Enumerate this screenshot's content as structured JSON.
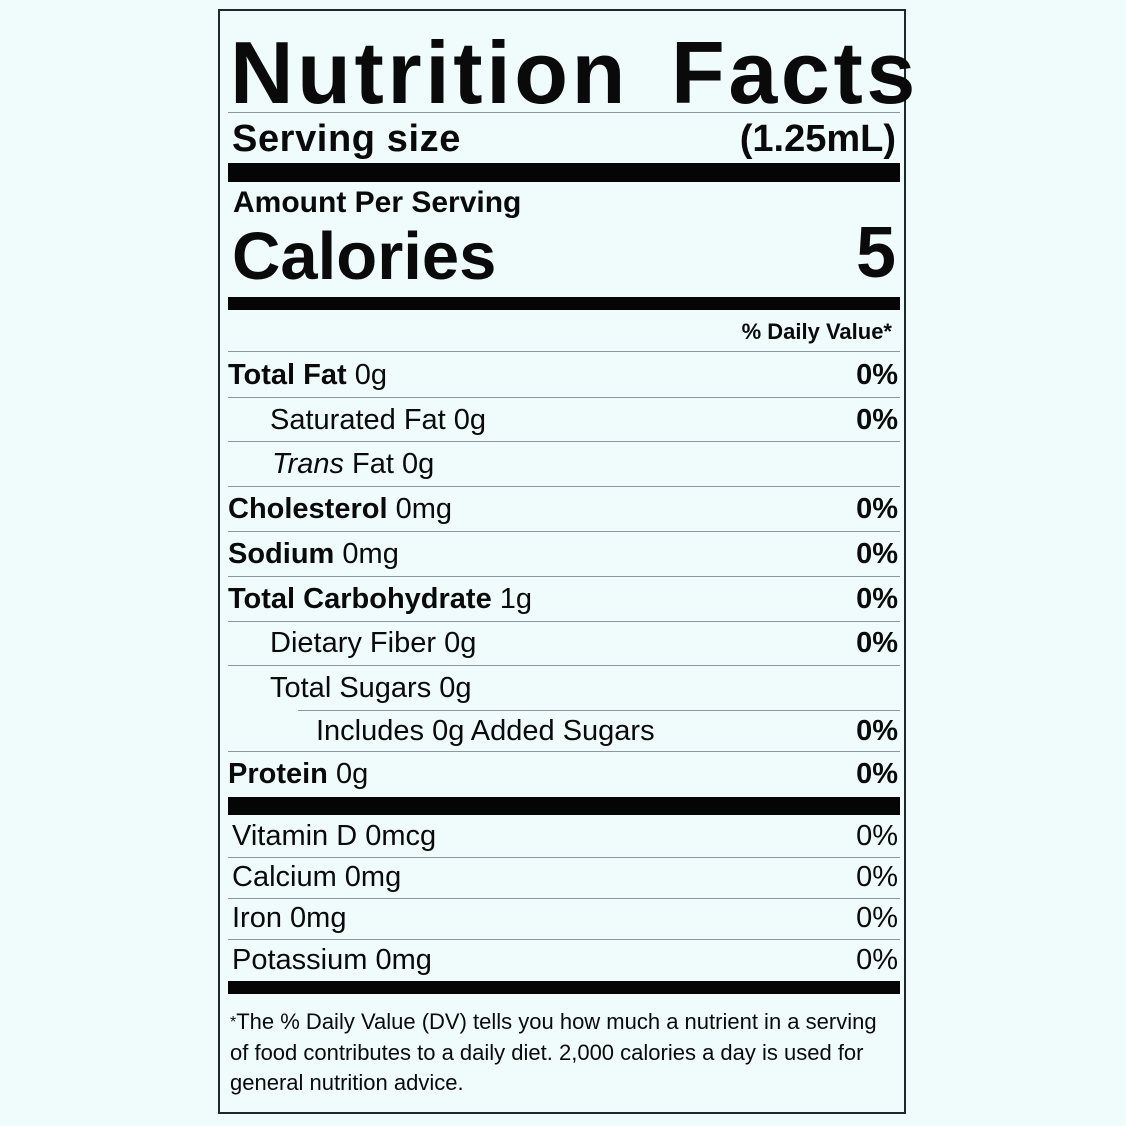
{
  "title": "Nutrition Facts",
  "serving": {
    "label": "Serving size",
    "value": "(1.25mL)"
  },
  "amount_per_serving": "Amount Per Serving",
  "calories": {
    "label": "Calories",
    "value": "5"
  },
  "daily_value_header": "% Daily Value*",
  "nutrients": [
    {
      "name": "Total Fat",
      "amount": "0g",
      "dv": "0%"
    },
    {
      "name": "Saturated Fat",
      "amount": "0g",
      "dv": "0%"
    },
    {
      "name_italic": "Trans",
      "name": "Fat",
      "amount": "0g"
    },
    {
      "name": "Cholesterol",
      "amount": "0mg",
      "dv": "0%"
    },
    {
      "name": "Sodium",
      "amount": "0mg",
      "dv": "0%"
    },
    {
      "name": "Total Carbohydrate",
      "amount": "1g",
      "dv": "0%"
    },
    {
      "name": "Dietary Fiber",
      "amount": "0g",
      "dv": "0%"
    },
    {
      "name": "Total Sugars",
      "amount": "0g"
    },
    {
      "name": "Includes 0g Added Sugars",
      "dv": "0%"
    },
    {
      "name": "Protein",
      "amount": "0g",
      "dv": "0%"
    }
  ],
  "vitamins": [
    {
      "name": "Vitamin D 0mcg",
      "dv": "0%"
    },
    {
      "name": "Calcium 0mg",
      "dv": "0%"
    },
    {
      "name": "Iron 0mg",
      "dv": "0%"
    },
    {
      "name": "Potassium 0mg",
      "dv": "0%"
    }
  ],
  "footnote": {
    "star": "*",
    "text": "The % Daily Value (DV) tells you how much a nutrient in a serving of food contributes to a daily diet. 2,000 calories a day is used for general nutrition advice."
  },
  "colors": {
    "background": "#f0fcfc",
    "ink": "#0a0a0a"
  }
}
